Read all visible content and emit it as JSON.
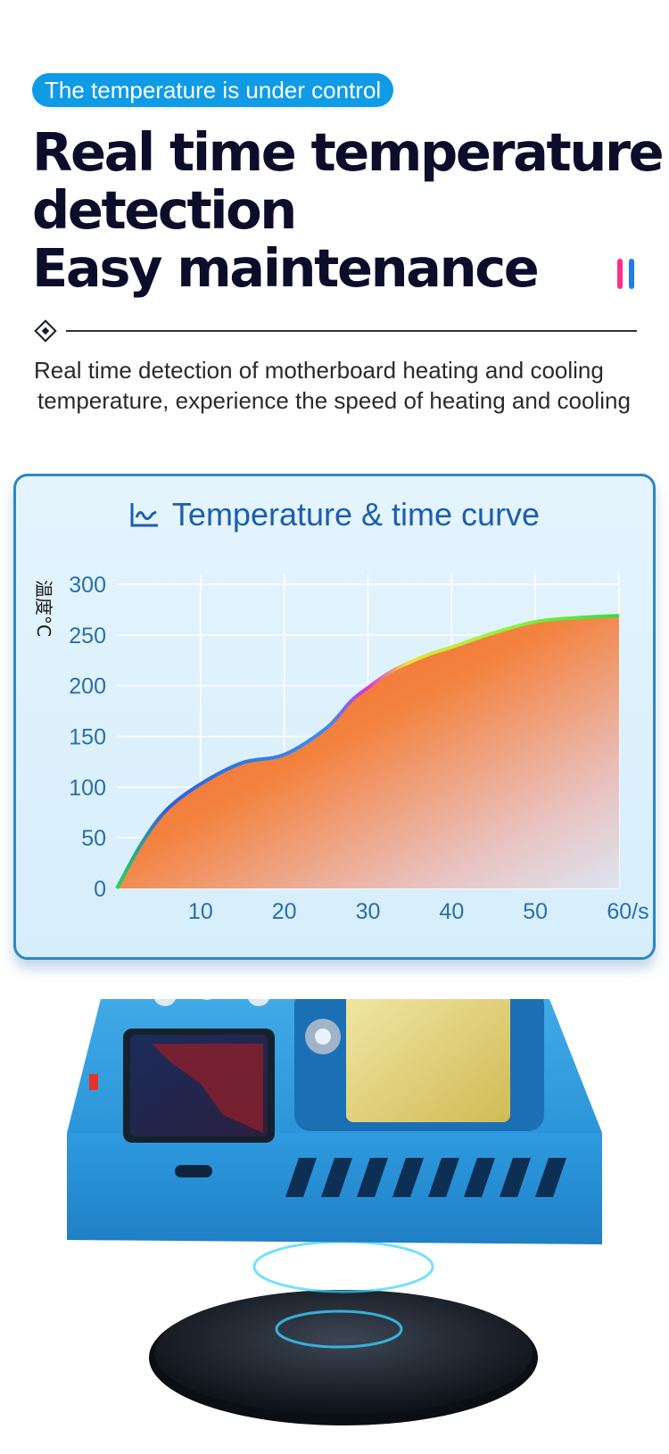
{
  "badge": "The temperature is under control",
  "headline": {
    "line1": "Real time temperature",
    "line2": "detection",
    "line3": "Easy maintenance"
  },
  "description": {
    "line1": "Real time detection of motherboard heating and cooling",
    "line2": "temperature, experience the speed of heating and cooling"
  },
  "colors": {
    "accent_blue": "#0f9be6",
    "pink": "#ff2d8a",
    "title_blue": "#1d5eaf",
    "tick_blue": "#2a6fa8"
  },
  "chart_data": {
    "type": "area",
    "title": "Temperature & time curve",
    "ylabel": "温度°C",
    "xlabel": "",
    "x_tick_labels": [
      "10",
      "20",
      "30",
      "40",
      "50",
      "60/s"
    ],
    "y_tick_labels": [
      "0",
      "50",
      "100",
      "150",
      "200",
      "250",
      "300"
    ],
    "xlim": [
      0,
      60
    ],
    "ylim": [
      0,
      300
    ],
    "grid": true,
    "x": [
      0,
      3,
      6,
      10,
      15,
      20,
      25,
      28,
      30,
      33,
      37,
      40,
      45,
      50,
      55,
      60
    ],
    "values": [
      0,
      45,
      78,
      103,
      124,
      132,
      158,
      185,
      198,
      215,
      230,
      238,
      252,
      263,
      267,
      269
    ]
  }
}
